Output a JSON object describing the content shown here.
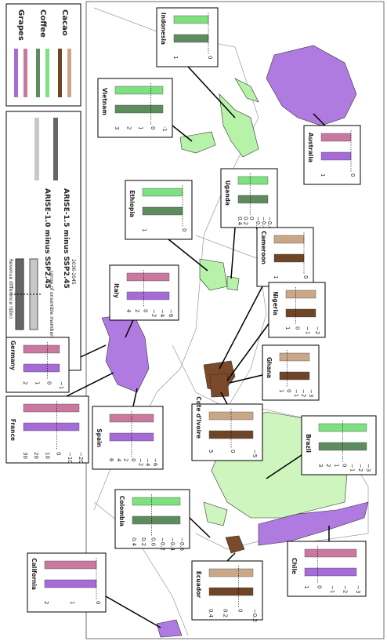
{
  "legend": {
    "crops": [
      {
        "name": "Grapes",
        "colors": [
          "#a56bd6",
          "#c9789f"
        ]
      },
      {
        "name": "Coffee",
        "colors": [
          "#5e8c5e",
          "#7fe07f"
        ]
      },
      {
        "name": "Cacao",
        "colors": [
          "#6e4527",
          "#c9a888"
        ]
      }
    ],
    "scenarios": [
      {
        "name": "ARISE-1.5 minus SSP2.45",
        "color": "#666666"
      },
      {
        "name": "ARISE-1.0 minus SSP2.45",
        "color": "#c8c8c8"
      }
    ],
    "range_label": "range of ensemble members",
    "axis_label": "Revenue difference ($bn)",
    "period": "2036-2045"
  },
  "insets": [
    {
      "name": "Indonesia",
      "colors": [
        "#7fe07f",
        "#5e8c5e"
      ],
      "ticks": [
        "1",
        "0"
      ]
    },
    {
      "name": "Vietnam",
      "colors": [
        "#7fe07f",
        "#5e8c5e"
      ],
      "ticks": [
        "3",
        "2",
        "1",
        "0",
        "-1"
      ]
    },
    {
      "name": "Australia",
      "colors": [
        "#c9789f",
        "#a56bd6"
      ],
      "ticks": [
        "1",
        "0"
      ]
    },
    {
      "name": "Uganda",
      "colors": [
        "#7fe07f",
        "#5e8c5e"
      ],
      "ticks": [
        "0.4",
        "0.2",
        "0",
        "−0.2",
        "−0.4",
        "−0.6"
      ]
    },
    {
      "name": "Ethiopia",
      "colors": [
        "#7fe07f",
        "#5e8c5e"
      ],
      "ticks": [
        "1",
        "0"
      ]
    },
    {
      "name": "Cameroon",
      "colors": [
        "#c9a888",
        "#6e4527"
      ],
      "ticks": [
        "1",
        "0"
      ]
    },
    {
      "name": "Italy",
      "colors": [
        "#c9789f",
        "#a56bd6"
      ],
      "ticks": [
        "4",
        "2",
        "0",
        "−2",
        "−4",
        "−6"
      ]
    },
    {
      "name": "Nigeria",
      "colors": [
        "#c9a888",
        "#6e4527"
      ],
      "ticks": [
        "1",
        "0",
        "−1",
        "−2"
      ]
    },
    {
      "name": "Germany",
      "colors": [
        "#c9789f",
        "#a56bd6"
      ],
      "ticks": [
        "2",
        "1",
        "0",
        "−1"
      ]
    },
    {
      "name": "Ghana",
      "colors": [
        "#c9a888",
        "#6e4527"
      ],
      "ticks": [
        "1",
        "0",
        "−1",
        "−2",
        "−3"
      ]
    },
    {
      "name": "France",
      "colors": [
        "#c9789f",
        "#a56bd6"
      ],
      "ticks": [
        "30",
        "20",
        "10",
        "0",
        "−10",
        "−20"
      ]
    },
    {
      "name": "Spain",
      "colors": [
        "#c9789f",
        "#a56bd6"
      ],
      "ticks": [
        "6",
        "4",
        "2",
        "0",
        "−2",
        "−4",
        "−6"
      ]
    },
    {
      "name": "Cote d'Ivoire",
      "colors": [
        "#c9a888",
        "#6e4527"
      ],
      "ticks": [
        "5",
        "0",
        "−5"
      ]
    },
    {
      "name": "Brazil",
      "colors": [
        "#7fe07f",
        "#5e8c5e"
      ],
      "ticks": [
        "3",
        "2",
        "1",
        "0",
        "−1",
        "−2",
        "−3"
      ]
    },
    {
      "name": "Colombia",
      "colors": [
        "#7fe07f",
        "#5e8c5e"
      ],
      "ticks": [
        "0.4",
        "0.2",
        "0.0",
        "−0.2",
        "−0.4",
        "−0.6"
      ]
    },
    {
      "name": "Chile",
      "colors": [
        "#c9789f",
        "#a56bd6"
      ],
      "ticks": [
        "1",
        "0",
        "−1",
        "−2",
        "−3"
      ]
    },
    {
      "name": "California",
      "colors": [
        "#c9789f",
        "#a56bd6"
      ],
      "ticks": [
        "2",
        "1",
        "0"
      ]
    },
    {
      "name": "Ecuador",
      "colors": [
        "#c9a888",
        "#6e4527"
      ],
      "ticks": [
        "0.4",
        "0.2",
        "0",
        "−0.2"
      ]
    }
  ]
}
